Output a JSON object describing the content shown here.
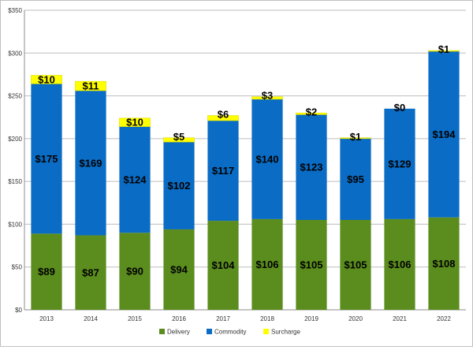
{
  "chart_data": {
    "type": "bar",
    "stacked": true,
    "categories": [
      "2013",
      "2014",
      "2015",
      "2016",
      "2017",
      "2018",
      "2019",
      "2020",
      "2021",
      "2022"
    ],
    "series": [
      {
        "name": "Delivery",
        "color": "#5b8c1e",
        "values": [
          89,
          87,
          90,
          94,
          104,
          106,
          105,
          105,
          106,
          108
        ]
      },
      {
        "name": "Commodity",
        "color": "#0a6cc4",
        "values": [
          175,
          169,
          124,
          102,
          117,
          140,
          123,
          95,
          129,
          194
        ]
      },
      {
        "name": "Surcharge",
        "color": "#ffff00",
        "values": [
          10,
          11,
          10,
          5,
          6,
          3,
          2,
          1,
          0,
          1
        ]
      }
    ],
    "data_labels": [
      [
        "$89",
        "$87",
        "$90",
        "$94",
        "$104",
        "$106",
        "$105",
        "$105",
        "$106",
        "$108"
      ],
      [
        "$175",
        "$169",
        "$124",
        "$102",
        "$117",
        "$140",
        "$123",
        "$95",
        "$129",
        "$194"
      ],
      [
        "$10",
        "$11",
        "$10",
        "$5",
        "$6",
        "$3",
        "$2",
        "$1",
        "$0",
        "$1"
      ]
    ],
    "ylim": [
      0,
      350
    ],
    "yticks": [
      0,
      50,
      100,
      150,
      200,
      250,
      300,
      350
    ],
    "ytick_labels": [
      "$0",
      "$50",
      "$100",
      "$150",
      "$200",
      "$250",
      "$300",
      "$350"
    ],
    "grid": true,
    "legend_position": "bottom"
  }
}
